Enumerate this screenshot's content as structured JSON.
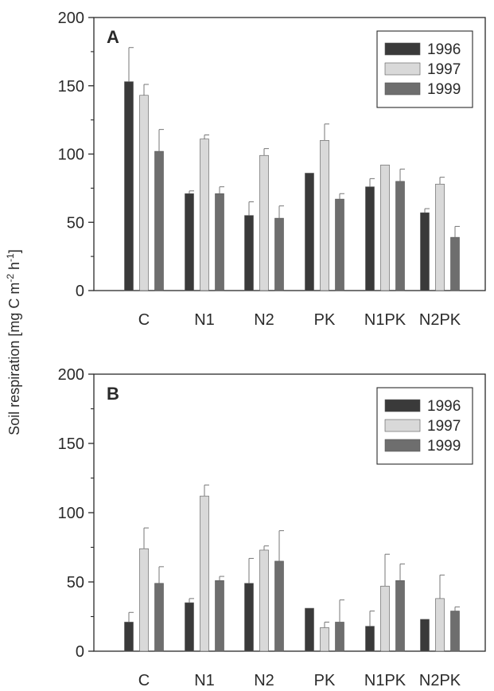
{
  "ylabel_parts": [
    "Soil respiration [mg C m",
    "-2",
    " h",
    "-1",
    "]"
  ],
  "colors": {
    "axis": "#2a2a2a",
    "1996": "#3a3a3a",
    "1997": "#d9d9d9",
    "1999": "#6e6e6e"
  },
  "chart_data": [
    {
      "type": "bar",
      "panel": "A",
      "categories": [
        "C",
        "N1",
        "N2",
        "PK",
        "N1PK",
        "N2PK"
      ],
      "ylim": [
        0,
        200
      ],
      "yticks": [
        0,
        50,
        100,
        150,
        200
      ],
      "ylabel": "Soil respiration [mg C m-2 h-1]",
      "legend": "top-right",
      "series": [
        {
          "name": "1996",
          "values": [
            153,
            71,
            55,
            86,
            76,
            57
          ],
          "errors": [
            25,
            2,
            10,
            0,
            6,
            3
          ]
        },
        {
          "name": "1997",
          "values": [
            143,
            111,
            99,
            110,
            92,
            78
          ],
          "errors": [
            8,
            3,
            5,
            12,
            0,
            5
          ]
        },
        {
          "name": "1999",
          "values": [
            102,
            71,
            53,
            67,
            80,
            39
          ],
          "errors": [
            16,
            5,
            9,
            4,
            9,
            8
          ]
        }
      ]
    },
    {
      "type": "bar",
      "panel": "B",
      "categories": [
        "C",
        "N1",
        "N2",
        "PK",
        "N1PK",
        "N2PK"
      ],
      "ylim": [
        0,
        200
      ],
      "yticks": [
        0,
        50,
        100,
        150,
        200
      ],
      "ylabel": "Soil respiration [mg C m-2 h-1]",
      "legend": "top-right",
      "series": [
        {
          "name": "1996",
          "values": [
            21,
            35,
            49,
            31,
            18,
            23
          ],
          "errors": [
            7,
            3,
            18,
            0,
            11,
            0
          ]
        },
        {
          "name": "1997",
          "values": [
            74,
            112,
            73,
            17,
            47,
            38
          ],
          "errors": [
            15,
            8,
            3,
            4,
            23,
            17
          ]
        },
        {
          "name": "1999",
          "values": [
            49,
            51,
            65,
            21,
            51,
            29
          ],
          "errors": [
            12,
            3,
            22,
            16,
            12,
            3
          ]
        }
      ]
    }
  ]
}
